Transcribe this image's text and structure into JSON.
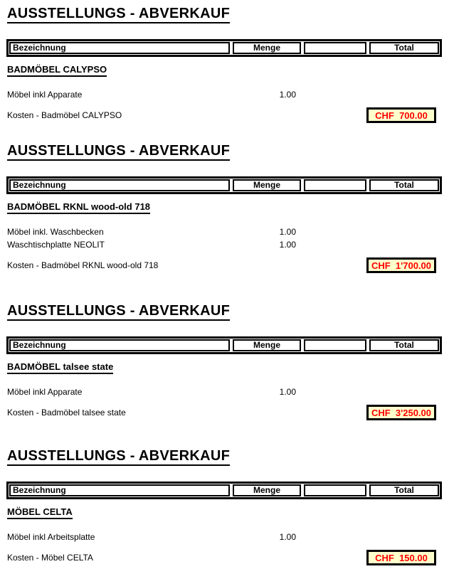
{
  "colors": {
    "highlight_background": "#FFFFCC",
    "highlight_text": "#FF0000",
    "border": "#000000"
  },
  "sections": [
    {
      "title": "AUSSTELLUNGS - ABVERKAUF",
      "header": {
        "bezeichnung": "Bezeichnung",
        "menge": "Menge",
        "total": "Total"
      },
      "group": "BADMÖBEL CALYPSO",
      "items": [
        {
          "label": "Möbel inkl Apparate",
          "menge": "1.00"
        }
      ],
      "kosten": {
        "label": "Kosten - Badmöbel CALYPSO",
        "total": "CHF  700.00"
      }
    },
    {
      "title": "AUSSTELLUNGS - ABVERKAUF",
      "header": {
        "bezeichnung": "Bezeichnung",
        "menge": "Menge",
        "total": "Total"
      },
      "group": "BADMÖBEL RKNL wood-old 718",
      "items": [
        {
          "label": "Möbel inkl. Waschbecken",
          "menge": "1.00"
        },
        {
          "label": "Waschtischplatte NEOLIT",
          "menge": "1.00"
        }
      ],
      "kosten": {
        "label": "Kosten - Badmöbel RKNL wood-old 718",
        "total": "CHF  1'700.00"
      }
    },
    {
      "title": "AUSSTELLUNGS - ABVERKAUF",
      "header": {
        "bezeichnung": "Bezeichnung",
        "menge": "Menge",
        "total": "Total"
      },
      "group": "BADMÖBEL talsee state",
      "items": [
        {
          "label": "Möbel inkl Apparate",
          "menge": "1.00"
        }
      ],
      "kosten": {
        "label": "Kosten - Badmöbel talsee state",
        "total": "CHF  3'250.00"
      }
    },
    {
      "title": "AUSSTELLUNGS - ABVERKAUF",
      "header": {
        "bezeichnung": "Bezeichnung",
        "menge": "Menge",
        "total": "Total"
      },
      "group": "MÖBEL CELTA",
      "items": [
        {
          "label": "Möbel inkl Arbeitsplatte",
          "menge": "1.00"
        }
      ],
      "kosten": {
        "label": "Kosten - Möbel CELTA",
        "total": "CHF  150.00"
      }
    }
  ]
}
